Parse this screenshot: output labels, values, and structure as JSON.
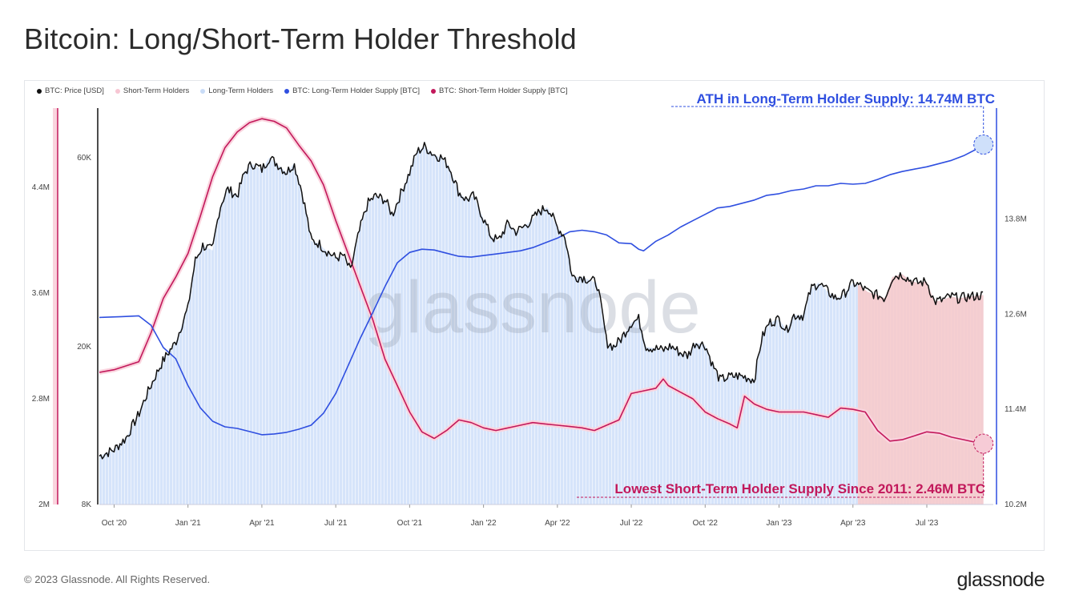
{
  "title": "Bitcoin: Long/Short-Term Holder Threshold",
  "footer": {
    "copyright": "© 2023 Glassnode. All Rights Reserved.",
    "logo": "glassnode"
  },
  "watermark": "glassnode",
  "colors": {
    "price": "#111111",
    "lth_supply": "#2f4fe0",
    "sth_supply": "#c2185b",
    "lth_area": "#d6e4fa",
    "sth_area": "#fad4de",
    "highlight_area": "#f8c9c9"
  },
  "chart_data": {
    "type": "line",
    "legend": [
      {
        "name": "BTC: Price [USD]",
        "color": "#111111"
      },
      {
        "name": "Short-Term Holders",
        "color": "#f7c6d3"
      },
      {
        "name": "Long-Term Holders",
        "color": "#c9dcf7"
      },
      {
        "name": "BTC: Long-Term Holder Supply [BTC]",
        "color": "#2f4fe0"
      },
      {
        "name": "BTC: Short-Term Holder Supply [BTC]",
        "color": "#c2185b"
      }
    ],
    "x_ticks": [
      "Oct '20",
      "Jan '21",
      "Apr '21",
      "Jul '21",
      "Oct '21",
      "Jan '22",
      "Apr '22",
      "Jul '22",
      "Oct '22",
      "Jan '23",
      "Apr '23",
      "Jul '23"
    ],
    "x_tick_months": [
      0,
      3,
      6,
      9,
      12,
      15,
      18,
      21,
      24,
      27,
      30,
      33
    ],
    "x_range_months": [
      -0.6,
      35.7
    ],
    "price_axis": {
      "scale": "log",
      "range": [
        8000,
        80000
      ],
      "ticks": [
        {
          "v": 8000,
          "label": "8K"
        },
        {
          "v": 20000,
          "label": "20K"
        },
        {
          "v": 60000,
          "label": "60K"
        }
      ]
    },
    "sth_axis": {
      "range": [
        2000000,
        5000000
      ],
      "ticks": [
        {
          "v": 2000000,
          "label": "2M"
        },
        {
          "v": 2800000,
          "label": "2.8M"
        },
        {
          "v": 3600000,
          "label": "3.6M"
        },
        {
          "v": 4400000,
          "label": "4.4M"
        }
      ]
    },
    "lth_axis": {
      "range": [
        10200000,
        15200000
      ],
      "ticks": [
        {
          "v": 10200000,
          "label": "10.2M"
        },
        {
          "v": 11400000,
          "label": "11.4M"
        },
        {
          "v": 12600000,
          "label": "12.6M"
        },
        {
          "v": 13800000,
          "label": "13.8M"
        }
      ]
    },
    "highlight_range_months": [
      30.2,
      35.3
    ],
    "series": [
      {
        "name": "BTC: Price [USD]",
        "axis": "price",
        "points": [
          [
            -0.6,
            10600
          ],
          [
            0.0,
            11000
          ],
          [
            0.5,
            11800
          ],
          [
            1.0,
            13500
          ],
          [
            1.5,
            16000
          ],
          [
            2.0,
            18500
          ],
          [
            2.5,
            20500
          ],
          [
            3.0,
            25000
          ],
          [
            3.3,
            33000
          ],
          [
            3.6,
            36000
          ],
          [
            4.0,
            35000
          ],
          [
            4.3,
            45000
          ],
          [
            4.6,
            50000
          ],
          [
            5.0,
            48000
          ],
          [
            5.3,
            55000
          ],
          [
            5.6,
            58000
          ],
          [
            6.0,
            56000
          ],
          [
            6.3,
            60000
          ],
          [
            6.6,
            58000
          ],
          [
            7.0,
            55000
          ],
          [
            7.3,
            58000
          ],
          [
            7.6,
            50000
          ],
          [
            8.0,
            37000
          ],
          [
            8.3,
            36500
          ],
          [
            8.6,
            35000
          ],
          [
            9.0,
            33500
          ],
          [
            9.3,
            34000
          ],
          [
            9.6,
            31000
          ],
          [
            10.0,
            40000
          ],
          [
            10.3,
            46000
          ],
          [
            10.6,
            48000
          ],
          [
            11.0,
            47000
          ],
          [
            11.3,
            43000
          ],
          [
            11.6,
            48000
          ],
          [
            12.0,
            55000
          ],
          [
            12.3,
            62000
          ],
          [
            12.6,
            64000
          ],
          [
            13.0,
            61000
          ],
          [
            13.3,
            60000
          ],
          [
            13.6,
            57000
          ],
          [
            14.0,
            49000
          ],
          [
            14.3,
            47000
          ],
          [
            14.6,
            48000
          ],
          [
            15.0,
            42000
          ],
          [
            15.3,
            38000
          ],
          [
            15.6,
            37000
          ],
          [
            16.0,
            41000
          ],
          [
            16.3,
            39000
          ],
          [
            16.6,
            40000
          ],
          [
            17.0,
            42000
          ],
          [
            17.3,
            44000
          ],
          [
            17.6,
            45000
          ],
          [
            18.0,
            40000
          ],
          [
            18.3,
            38000
          ],
          [
            18.6,
            30000
          ],
          [
            19.0,
            30000
          ],
          [
            19.3,
            29500
          ],
          [
            19.6,
            29000
          ],
          [
            20.0,
            20500
          ],
          [
            20.3,
            20000
          ],
          [
            20.6,
            21000
          ],
          [
            21.0,
            23000
          ],
          [
            21.3,
            23500
          ],
          [
            21.6,
            20000
          ],
          [
            22.0,
            19800
          ],
          [
            22.3,
            19600
          ],
          [
            22.6,
            20100
          ],
          [
            23.0,
            19300
          ],
          [
            23.3,
            19000
          ],
          [
            23.6,
            20500
          ],
          [
            24.0,
            20200
          ],
          [
            24.3,
            18000
          ],
          [
            24.6,
            16500
          ],
          [
            25.0,
            16800
          ],
          [
            25.3,
            16900
          ],
          [
            25.6,
            16800
          ],
          [
            26.0,
            16500
          ],
          [
            26.3,
            21000
          ],
          [
            26.6,
            23000
          ],
          [
            27.0,
            23500
          ],
          [
            27.3,
            22000
          ],
          [
            27.6,
            24000
          ],
          [
            28.0,
            24000
          ],
          [
            28.3,
            28000
          ],
          [
            28.6,
            29000
          ],
          [
            29.0,
            27500
          ],
          [
            29.3,
            26500
          ],
          [
            29.6,
            27000
          ],
          [
            30.0,
            29000
          ],
          [
            30.3,
            28500
          ],
          [
            30.6,
            27500
          ],
          [
            31.0,
            27000
          ],
          [
            31.3,
            26500
          ],
          [
            31.6,
            30000
          ],
          [
            32.0,
            30500
          ],
          [
            32.3,
            29500
          ],
          [
            32.6,
            29000
          ],
          [
            33.0,
            29200
          ],
          [
            33.3,
            26000
          ],
          [
            33.6,
            26200
          ],
          [
            34.0,
            26800
          ],
          [
            34.3,
            26500
          ],
          [
            34.6,
            26700
          ],
          [
            35.3,
            27000
          ]
        ]
      },
      {
        "name": "BTC: Long-Term Holder Supply [BTC]",
        "axis": "lth",
        "points": [
          [
            -0.6,
            12560
          ],
          [
            0.3,
            12570
          ],
          [
            1.0,
            12580
          ],
          [
            1.5,
            12460
          ],
          [
            2.0,
            12180
          ],
          [
            2.5,
            12040
          ],
          [
            3.0,
            11700
          ],
          [
            3.5,
            11420
          ],
          [
            4.0,
            11250
          ],
          [
            4.5,
            11180
          ],
          [
            5.0,
            11160
          ],
          [
            5.5,
            11120
          ],
          [
            6.0,
            11080
          ],
          [
            6.5,
            11090
          ],
          [
            7.0,
            11110
          ],
          [
            7.5,
            11150
          ],
          [
            8.0,
            11200
          ],
          [
            8.5,
            11350
          ],
          [
            9.0,
            11600
          ],
          [
            9.5,
            11950
          ],
          [
            10.0,
            12300
          ],
          [
            10.5,
            12620
          ],
          [
            11.0,
            12950
          ],
          [
            11.5,
            13250
          ],
          [
            12.0,
            13380
          ],
          [
            12.5,
            13420
          ],
          [
            13.0,
            13410
          ],
          [
            13.5,
            13370
          ],
          [
            14.0,
            13330
          ],
          [
            14.5,
            13320
          ],
          [
            15.0,
            13340
          ],
          [
            15.5,
            13360
          ],
          [
            16.0,
            13380
          ],
          [
            16.5,
            13400
          ],
          [
            17.0,
            13440
          ],
          [
            17.5,
            13500
          ],
          [
            18.0,
            13560
          ],
          [
            18.5,
            13640
          ],
          [
            19.0,
            13660
          ],
          [
            19.5,
            13640
          ],
          [
            20.0,
            13600
          ],
          [
            20.5,
            13500
          ],
          [
            21.0,
            13490
          ],
          [
            21.3,
            13420
          ],
          [
            21.5,
            13400
          ],
          [
            22.0,
            13520
          ],
          [
            22.5,
            13600
          ],
          [
            23.0,
            13700
          ],
          [
            23.5,
            13780
          ],
          [
            24.0,
            13860
          ],
          [
            24.5,
            13940
          ],
          [
            25.0,
            13960
          ],
          [
            25.5,
            14000
          ],
          [
            26.0,
            14040
          ],
          [
            26.5,
            14100
          ],
          [
            27.0,
            14120
          ],
          [
            27.5,
            14160
          ],
          [
            28.0,
            14180
          ],
          [
            28.5,
            14220
          ],
          [
            29.0,
            14220
          ],
          [
            29.5,
            14250
          ],
          [
            30.0,
            14240
          ],
          [
            30.5,
            14250
          ],
          [
            31.0,
            14300
          ],
          [
            31.5,
            14360
          ],
          [
            32.0,
            14400
          ],
          [
            32.5,
            14430
          ],
          [
            33.0,
            14460
          ],
          [
            33.5,
            14500
          ],
          [
            34.0,
            14540
          ],
          [
            34.5,
            14600
          ],
          [
            35.0,
            14680
          ],
          [
            35.3,
            14740
          ]
        ]
      },
      {
        "name": "BTC: Short-Term Holder Supply [BTC]",
        "axis": "sth",
        "points": [
          [
            -0.6,
            3000
          ],
          [
            0.0,
            3020
          ],
          [
            0.5,
            3050
          ],
          [
            1.0,
            3080
          ],
          [
            1.5,
            3300
          ],
          [
            2.0,
            3560
          ],
          [
            2.5,
            3720
          ],
          [
            3.0,
            3900
          ],
          [
            3.5,
            4180
          ],
          [
            4.0,
            4480
          ],
          [
            4.5,
            4700
          ],
          [
            5.0,
            4820
          ],
          [
            5.5,
            4890
          ],
          [
            6.0,
            4920
          ],
          [
            6.5,
            4900
          ],
          [
            7.0,
            4850
          ],
          [
            7.5,
            4720
          ],
          [
            8.0,
            4600
          ],
          [
            8.5,
            4420
          ],
          [
            9.0,
            4150
          ],
          [
            9.5,
            3900
          ],
          [
            10.0,
            3650
          ],
          [
            10.5,
            3400
          ],
          [
            11.0,
            3100
          ],
          [
            11.5,
            2900
          ],
          [
            12.0,
            2700
          ],
          [
            12.5,
            2550
          ],
          [
            13.0,
            2500
          ],
          [
            13.5,
            2560
          ],
          [
            14.0,
            2640
          ],
          [
            14.5,
            2620
          ],
          [
            15.0,
            2580
          ],
          [
            15.5,
            2560
          ],
          [
            16.0,
            2580
          ],
          [
            16.5,
            2600
          ],
          [
            17.0,
            2620
          ],
          [
            17.5,
            2610
          ],
          [
            18.0,
            2600
          ],
          [
            18.5,
            2590
          ],
          [
            19.0,
            2580
          ],
          [
            19.5,
            2560
          ],
          [
            20.0,
            2600
          ],
          [
            20.5,
            2640
          ],
          [
            21.0,
            2840
          ],
          [
            21.5,
            2860
          ],
          [
            22.0,
            2880
          ],
          [
            22.3,
            2950
          ],
          [
            22.5,
            2900
          ],
          [
            23.0,
            2850
          ],
          [
            23.5,
            2800
          ],
          [
            24.0,
            2700
          ],
          [
            24.5,
            2650
          ],
          [
            25.0,
            2610
          ],
          [
            25.3,
            2580
          ],
          [
            25.6,
            2820
          ],
          [
            26.0,
            2760
          ],
          [
            26.5,
            2720
          ],
          [
            27.0,
            2700
          ],
          [
            27.5,
            2700
          ],
          [
            28.0,
            2700
          ],
          [
            28.5,
            2680
          ],
          [
            29.0,
            2660
          ],
          [
            29.5,
            2730
          ],
          [
            30.0,
            2720
          ],
          [
            30.5,
            2700
          ],
          [
            31.0,
            2560
          ],
          [
            31.5,
            2480
          ],
          [
            32.0,
            2490
          ],
          [
            32.5,
            2520
          ],
          [
            33.0,
            2550
          ],
          [
            33.5,
            2540
          ],
          [
            34.0,
            2510
          ],
          [
            34.5,
            2490
          ],
          [
            35.0,
            2470
          ],
          [
            35.3,
            2460
          ]
        ]
      }
    ],
    "annotations": [
      {
        "name": "ath-annotation",
        "text": "ATH in Long-Term Holder Supply: 14.74M BTC",
        "color": "#2f4fe0",
        "axis": "lth",
        "at": [
          35.3,
          14740
        ]
      },
      {
        "name": "low-annotation",
        "text": "Lowest Short-Term Holder Supply Since 2011: 2.46M BTC",
        "color": "#c2185b",
        "axis": "sth",
        "at": [
          35.3,
          2460
        ]
      }
    ]
  }
}
